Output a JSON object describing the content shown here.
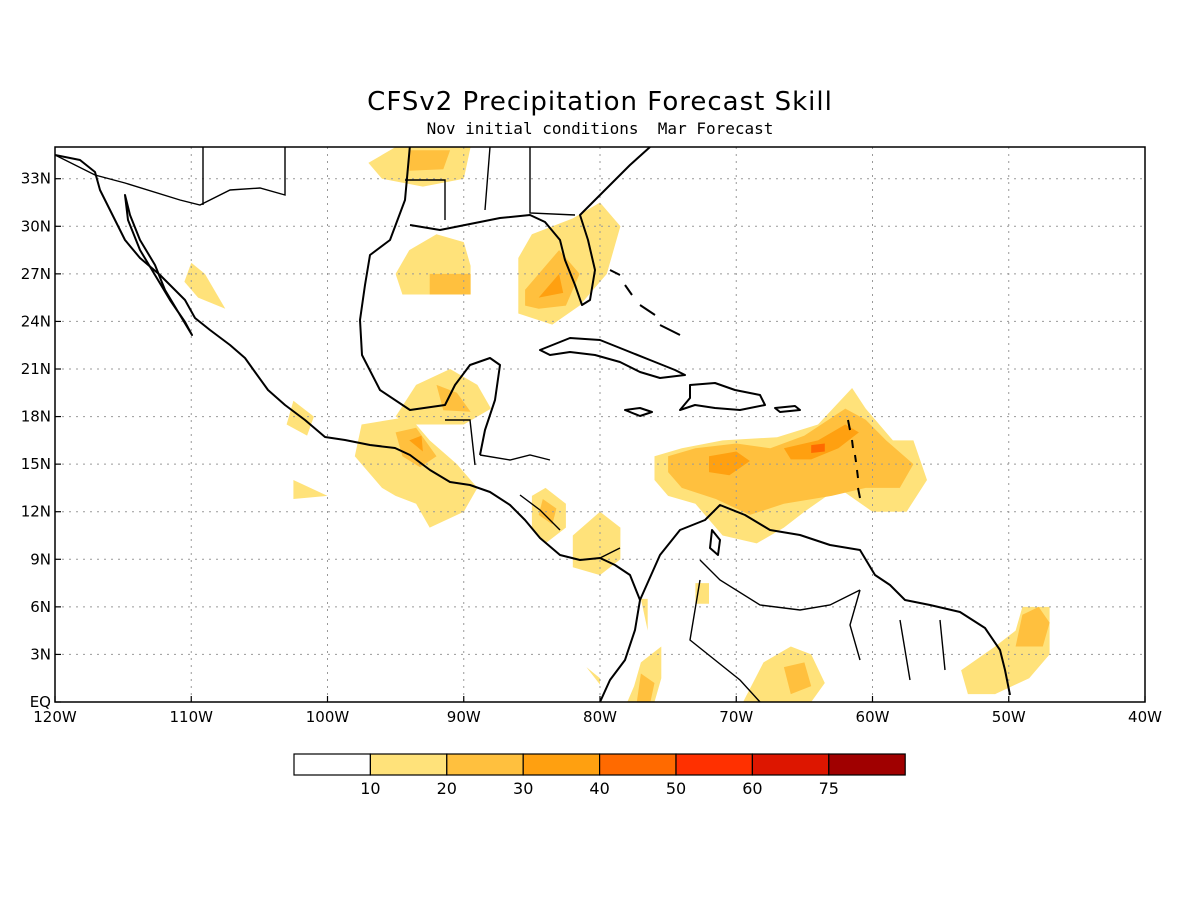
{
  "title": "CFSv2 Precipitation Forecast Skill",
  "subtitle": "Nov initial conditions  Mar Forecast",
  "map": {
    "lon_range": [
      -120,
      -40
    ],
    "lat_range": [
      0,
      35
    ],
    "lon_ticks": [
      {
        "value": -120,
        "label": "120W"
      },
      {
        "value": -110,
        "label": "110W"
      },
      {
        "value": -100,
        "label": "100W"
      },
      {
        "value": -90,
        "label": "90W"
      },
      {
        "value": -80,
        "label": "80W"
      },
      {
        "value": -70,
        "label": "70W"
      },
      {
        "value": -60,
        "label": "60W"
      },
      {
        "value": -50,
        "label": "50W"
      },
      {
        "value": -40,
        "label": "40W"
      }
    ],
    "lat_ticks": [
      {
        "value": 0,
        "label": "EQ"
      },
      {
        "value": 3,
        "label": "3N"
      },
      {
        "value": 6,
        "label": "6N"
      },
      {
        "value": 9,
        "label": "9N"
      },
      {
        "value": 12,
        "label": "12N"
      },
      {
        "value": 15,
        "label": "15N"
      },
      {
        "value": 18,
        "label": "18N"
      },
      {
        "value": 21,
        "label": "21N"
      },
      {
        "value": 24,
        "label": "24N"
      },
      {
        "value": 27,
        "label": "27N"
      },
      {
        "value": 30,
        "label": "30N"
      },
      {
        "value": 33,
        "label": "33N"
      }
    ],
    "grid": true
  },
  "legend": {
    "boxes": [
      {
        "color": "#ffffff"
      },
      {
        "color": "#ffe27a"
      },
      {
        "color": "#ffc03e"
      },
      {
        "color": "#ffa010"
      },
      {
        "color": "#ff6a00"
      },
      {
        "color": "#ff3000"
      },
      {
        "color": "#dd1600"
      },
      {
        "color": "#a00000"
      }
    ],
    "labels": [
      "10",
      "20",
      "30",
      "40",
      "50",
      "60",
      "75"
    ]
  },
  "skill_regions": [
    {
      "level": 1,
      "points": [
        [
          -95,
          35
        ],
        [
          -89.5,
          35
        ],
        [
          -90,
          33
        ],
        [
          -93,
          32.5
        ],
        [
          -96,
          33
        ],
        [
          -97,
          34
        ]
      ]
    },
    {
      "level": 2,
      "points": [
        [
          -94,
          34.8
        ],
        [
          -91,
          34.8
        ],
        [
          -91.5,
          33.6
        ],
        [
          -94,
          33.5
        ]
      ]
    },
    {
      "level": 1,
      "points": [
        [
          -95,
          27
        ],
        [
          -94,
          28.5
        ],
        [
          -92,
          29.5
        ],
        [
          -90,
          29
        ],
        [
          -89.5,
          27.5
        ],
        [
          -89.5,
          25.7
        ],
        [
          -92,
          25.7
        ],
        [
          -94.5,
          25.7
        ]
      ]
    },
    {
      "level": 2,
      "points": [
        [
          -92.5,
          27
        ],
        [
          -89.5,
          27
        ],
        [
          -89.5,
          25.7
        ],
        [
          -92.5,
          25.7
        ]
      ]
    },
    {
      "level": 1,
      "points": [
        [
          -86,
          28
        ],
        [
          -85,
          29.5
        ],
        [
          -82,
          30.5
        ],
        [
          -80,
          31.5
        ],
        [
          -78.5,
          30
        ],
        [
          -79.5,
          27
        ],
        [
          -81.5,
          25
        ],
        [
          -83.5,
          23.8
        ],
        [
          -86,
          24.5
        ],
        [
          -86,
          26.5
        ]
      ]
    },
    {
      "level": 2,
      "points": [
        [
          -85.5,
          26
        ],
        [
          -83,
          28.5
        ],
        [
          -81.5,
          27
        ],
        [
          -82.5,
          25
        ],
        [
          -84.5,
          24.8
        ],
        [
          -85.5,
          25
        ]
      ]
    },
    {
      "level": 3,
      "points": [
        [
          -84.5,
          25.5
        ],
        [
          -83,
          27
        ],
        [
          -82.7,
          25.8
        ]
      ]
    },
    {
      "level": 1,
      "points": [
        [
          -110,
          27.7
        ],
        [
          -109,
          27
        ],
        [
          -107.5,
          24.8
        ],
        [
          -109.5,
          25.5
        ],
        [
          -110.5,
          26.5
        ]
      ]
    },
    {
      "level": 1,
      "points": [
        [
          -102.5,
          19
        ],
        [
          -101,
          18
        ],
        [
          -101.5,
          16.8
        ],
        [
          -103,
          17.5
        ]
      ]
    },
    {
      "level": 1,
      "points": [
        [
          -95,
          18
        ],
        [
          -93.5,
          20
        ],
        [
          -91,
          21
        ],
        [
          -89,
          20
        ],
        [
          -88,
          18.5
        ],
        [
          -90,
          17.5
        ],
        [
          -92,
          17.5
        ],
        [
          -94,
          17.5
        ]
      ]
    },
    {
      "level": 2,
      "points": [
        [
          -92,
          20
        ],
        [
          -90.5,
          19.5
        ],
        [
          -89.5,
          18.3
        ],
        [
          -91.5,
          18.4
        ]
      ]
    },
    {
      "level": 1,
      "points": [
        [
          -97.5,
          17.5
        ],
        [
          -94,
          18
        ],
        [
          -92.5,
          16.5
        ],
        [
          -90.5,
          15
        ],
        [
          -89,
          13.5
        ],
        [
          -90,
          12
        ],
        [
          -92.5,
          11
        ],
        [
          -93.5,
          12.5
        ],
        [
          -95,
          13
        ],
        [
          -96,
          13.5
        ],
        [
          -98,
          15.5
        ]
      ]
    },
    {
      "level": 2,
      "points": [
        [
          -95,
          17
        ],
        [
          -93.5,
          17.3
        ],
        [
          -92,
          15.5
        ],
        [
          -93.2,
          14.8
        ],
        [
          -94.5,
          15.5
        ]
      ]
    },
    {
      "level": 3,
      "points": [
        [
          -94,
          16.5
        ],
        [
          -93.1,
          16.8
        ],
        [
          -93,
          15.8
        ]
      ]
    },
    {
      "level": 1,
      "points": [
        [
          -102.5,
          14
        ],
        [
          -100,
          13
        ],
        [
          -102.5,
          12.8
        ]
      ]
    },
    {
      "level": 1,
      "points": [
        [
          -85,
          13
        ],
        [
          -84,
          13.5
        ],
        [
          -82.5,
          12.5
        ],
        [
          -82.5,
          11
        ],
        [
          -84,
          10
        ],
        [
          -85,
          11
        ]
      ]
    },
    {
      "level": 2,
      "points": [
        [
          -84.2,
          12.8
        ],
        [
          -83.2,
          12.2
        ],
        [
          -83.5,
          11.2
        ],
        [
          -84.5,
          11.8
        ]
      ]
    },
    {
      "level": 1,
      "points": [
        [
          -82,
          10.5
        ],
        [
          -80,
          12
        ],
        [
          -78.5,
          11
        ],
        [
          -78.5,
          9
        ],
        [
          -80,
          8
        ],
        [
          -82,
          8.5
        ]
      ]
    },
    {
      "level": 1,
      "points": [
        [
          -76,
          15.5
        ],
        [
          -74,
          16
        ],
        [
          -71,
          16.5
        ],
        [
          -67,
          16.7
        ],
        [
          -64,
          17.5
        ],
        [
          -61.5,
          19.8
        ],
        [
          -60.5,
          18.5
        ],
        [
          -58.5,
          16.5
        ],
        [
          -57,
          16.5
        ],
        [
          -56,
          14
        ],
        [
          -57.5,
          12
        ],
        [
          -60,
          12
        ],
        [
          -62.5,
          13.5
        ],
        [
          -65,
          12
        ],
        [
          -66.5,
          11
        ],
        [
          -68.5,
          10
        ],
        [
          -71,
          10.5
        ],
        [
          -73,
          12.5
        ],
        [
          -75,
          13
        ],
        [
          -76,
          14
        ]
      ]
    },
    {
      "level": 2,
      "points": [
        [
          -75,
          15.5
        ],
        [
          -73,
          16
        ],
        [
          -70,
          16.3
        ],
        [
          -67.5,
          16
        ],
        [
          -65,
          16.8
        ],
        [
          -62,
          18.5
        ],
        [
          -60.5,
          17.8
        ],
        [
          -59,
          16.5
        ],
        [
          -57,
          15
        ],
        [
          -58,
          13.5
        ],
        [
          -60.5,
          13.5
        ],
        [
          -63,
          13
        ],
        [
          -66.5,
          12.5
        ],
        [
          -69,
          11.8
        ],
        [
          -71.5,
          12.8
        ],
        [
          -74,
          13.5
        ],
        [
          -75,
          14.5
        ]
      ]
    },
    {
      "level": 3,
      "points": [
        [
          -72,
          15.5
        ],
        [
          -70,
          15.8
        ],
        [
          -69,
          15.2
        ],
        [
          -70.5,
          14.3
        ],
        [
          -72,
          14.5
        ]
      ]
    },
    {
      "level": 3,
      "points": [
        [
          -66.5,
          16
        ],
        [
          -64,
          16.5
        ],
        [
          -62,
          17.5
        ],
        [
          -61,
          17
        ],
        [
          -62.5,
          16
        ],
        [
          -64.5,
          15.3
        ],
        [
          -66,
          15.3
        ]
      ]
    },
    {
      "level": 4,
      "points": [
        [
          -64.5,
          16.2
        ],
        [
          -63.5,
          16.3
        ],
        [
          -63.5,
          15.8
        ],
        [
          -64.5,
          15.7
        ]
      ]
    },
    {
      "level": 1,
      "points": [
        [
          -73,
          7.5
        ],
        [
          -72,
          7.5
        ],
        [
          -72,
          6.2
        ],
        [
          -73,
          6.2
        ]
      ]
    },
    {
      "level": 1,
      "points": [
        [
          -51,
          3.5
        ],
        [
          -49.5,
          4.5
        ],
        [
          -49,
          6
        ],
        [
          -47,
          6
        ],
        [
          -47,
          3
        ],
        [
          -48.5,
          1.5
        ],
        [
          -51,
          0.5
        ],
        [
          -53,
          0.5
        ],
        [
          -53.5,
          2
        ]
      ]
    },
    {
      "level": 2,
      "points": [
        [
          -49,
          5.5
        ],
        [
          -47.8,
          6
        ],
        [
          -47,
          5
        ],
        [
          -47.5,
          3.5
        ],
        [
          -49.5,
          3.5
        ]
      ]
    },
    {
      "level": 1,
      "points": [
        [
          -68,
          2.5
        ],
        [
          -66,
          3.5
        ],
        [
          -64.5,
          3
        ],
        [
          -63.5,
          1.2
        ],
        [
          -64.5,
          0
        ],
        [
          -69.5,
          0
        ]
      ]
    },
    {
      "level": 2,
      "points": [
        [
          -66.5,
          2.2
        ],
        [
          -65,
          2.5
        ],
        [
          -64.5,
          1
        ],
        [
          -66,
          0.5
        ]
      ]
    },
    {
      "level": 1,
      "points": [
        [
          -77,
          2.5
        ],
        [
          -75.5,
          3.5
        ],
        [
          -75.5,
          1.5
        ],
        [
          -76,
          0
        ],
        [
          -78,
          0
        ],
        [
          -77.5,
          1
        ]
      ]
    },
    {
      "level": 2,
      "points": [
        [
          -77,
          1.8
        ],
        [
          -76,
          1.2
        ],
        [
          -76.3,
          0
        ],
        [
          -77.3,
          0
        ]
      ]
    },
    {
      "level": 1,
      "points": [
        [
          -77,
          6.5
        ],
        [
          -76.5,
          6.5
        ],
        [
          -76.5,
          4.5
        ]
      ]
    },
    {
      "level": 1,
      "points": [
        [
          -81,
          2.2
        ],
        [
          -80,
          1.5
        ],
        [
          -80,
          1.1
        ]
      ]
    },
    {
      "level": 1,
      "points": [
        [
          -53,
          1
        ],
        [
          -52,
          2.8
        ],
        [
          -51,
          2.5
        ],
        [
          -51,
          0.5
        ]
      ]
    }
  ]
}
